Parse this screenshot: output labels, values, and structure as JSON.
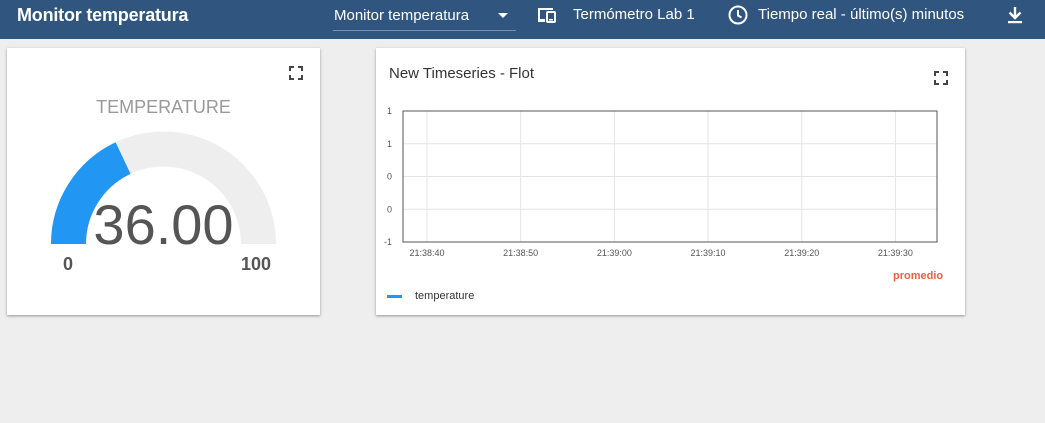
{
  "header": {
    "title": "Monitor temperatura",
    "dashboard_select": {
      "selected": "Monitor temperatura"
    },
    "entity_alias": {
      "label": "Termómetro Lab 1",
      "icon": "devices-icon"
    },
    "timewindow": {
      "label": "Tiempo real - último(s) minutos",
      "icon": "clock-icon"
    },
    "download": {
      "icon": "download-icon"
    }
  },
  "gauge_widget": {
    "title": "TEMPERATURE",
    "value": 36.0,
    "value_label": "36.00",
    "min_label": "0",
    "max_label": "100",
    "min": 0,
    "max": 100,
    "bar_color": "#2196f3",
    "track_color": "#eeeeee"
  },
  "chart_widget": {
    "title": "New Timeseries - Flot",
    "aggregation_label": "promedio",
    "chart_data": {
      "type": "line",
      "title": "New Timeseries - Flot",
      "xlabel": "",
      "ylabel": "",
      "x_ticks": [
        "21:38:40",
        "21:38:50",
        "21:39:00",
        "21:39:10",
        "21:39:20",
        "21:39:30"
      ],
      "y_ticks": [
        "1",
        "1",
        "0",
        "0",
        "-1"
      ],
      "grid": true,
      "legend_position": "bottom-left",
      "series": [
        {
          "name": "temperature",
          "color": "#2196f3",
          "x": [],
          "y": []
        }
      ]
    }
  }
}
